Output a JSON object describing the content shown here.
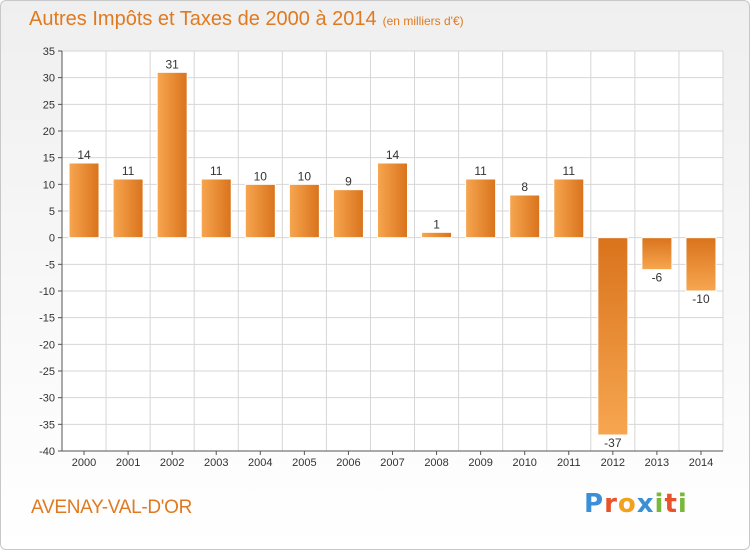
{
  "header": {
    "title": "Autres Impôts et Taxes de 2000 à 2014",
    "unit": "(en milliers d'€)"
  },
  "footer": {
    "commune": "AVENAY-VAL-D'OR",
    "brand_letters": [
      "P",
      "r",
      "o",
      "x",
      "i",
      "t",
      "i"
    ],
    "brand_colors": [
      "#3a8fd6",
      "#e8532b",
      "#f2a11f",
      "#3a8fd6",
      "#7ab83a",
      "#e8532b",
      "#7ab83a"
    ]
  },
  "colors": {
    "bar_light": "#f7a650",
    "bar_dark": "#d9731c",
    "accent": "#e07a20",
    "grid": "#d6d6d6"
  },
  "chart_data": {
    "type": "bar",
    "title": "Autres Impôts et Taxes de 2000 à 2014",
    "subtitle": "(en milliers d'€)",
    "categories": [
      "2000",
      "2001",
      "2002",
      "2003",
      "2004",
      "2005",
      "2006",
      "2007",
      "2008",
      "2009",
      "2010",
      "2011",
      "2012",
      "2013",
      "2014"
    ],
    "values": [
      14,
      11,
      31,
      11,
      10,
      10,
      9,
      14,
      1,
      11,
      8,
      11,
      -37,
      -6,
      -10
    ],
    "ylim": [
      -40,
      35
    ],
    "yticks": [
      35,
      30,
      25,
      20,
      15,
      10,
      5,
      0,
      -5,
      -10,
      -15,
      -20,
      -25,
      -30,
      -35,
      -40
    ],
    "grid": true
  }
}
